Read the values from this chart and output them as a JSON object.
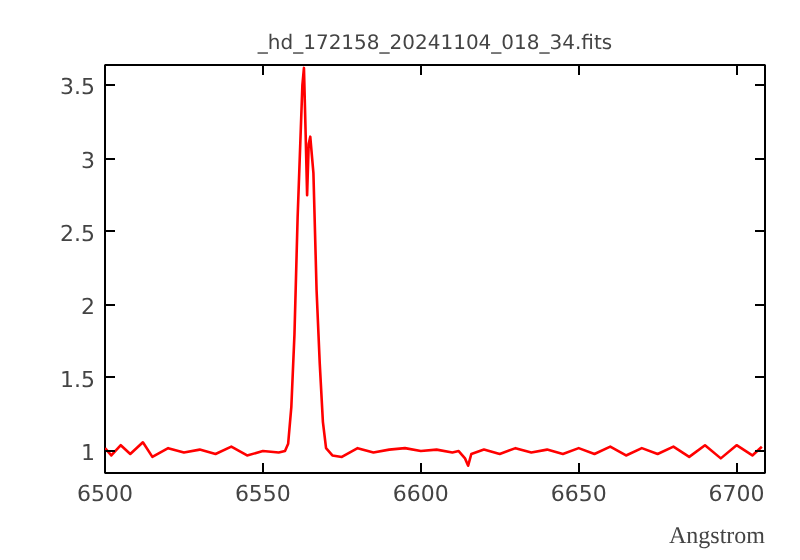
{
  "chart_data": {
    "type": "line",
    "title": "_hd_172158_20241104_018_34.fits",
    "xlabel": "Angstrom",
    "x": [
      6500,
      6502,
      6505,
      6508,
      6512,
      6515,
      6520,
      6525,
      6530,
      6535,
      6540,
      6545,
      6550,
      6555,
      6557,
      6558,
      6559,
      6560,
      6561,
      6562,
      6562.5,
      6563,
      6563.5,
      6564,
      6564.5,
      6565,
      6566,
      6567,
      6568,
      6569,
      6570,
      6572,
      6575,
      6580,
      6585,
      6590,
      6595,
      6600,
      6605,
      6610,
      6612,
      6614,
      6615,
      6616,
      6620,
      6625,
      6630,
      6635,
      6640,
      6645,
      6650,
      6655,
      6660,
      6665,
      6670,
      6675,
      6680,
      6685,
      6690,
      6695,
      6700,
      6705,
      6708
    ],
    "series": [
      {
        "color": "#ff0000",
        "values": [
          1.02,
          0.97,
          1.04,
          0.98,
          1.06,
          0.96,
          1.02,
          0.99,
          1.01,
          0.98,
          1.03,
          0.97,
          1.0,
          0.99,
          1.0,
          1.05,
          1.3,
          1.8,
          2.6,
          3.2,
          3.5,
          3.62,
          3.2,
          2.75,
          3.1,
          3.15,
          2.9,
          2.1,
          1.6,
          1.2,
          1.02,
          0.97,
          0.96,
          1.02,
          0.99,
          1.01,
          1.02,
          1.0,
          1.01,
          0.99,
          1.0,
          0.95,
          0.9,
          0.98,
          1.01,
          0.98,
          1.02,
          0.99,
          1.01,
          0.98,
          1.02,
          0.98,
          1.03,
          0.97,
          1.02,
          0.98,
          1.03,
          0.96,
          1.04,
          0.95,
          1.04,
          0.97,
          1.03
        ]
      }
    ],
    "xlim": [
      6500,
      6709
    ],
    "ylim": [
      0.85,
      3.64
    ],
    "xticks": [
      6500,
      6550,
      6600,
      6650,
      6700
    ],
    "yticks": [
      1,
      1.5,
      2,
      2.5,
      3,
      3.5
    ],
    "grid": false,
    "marker": "none",
    "line_style": "solid"
  }
}
